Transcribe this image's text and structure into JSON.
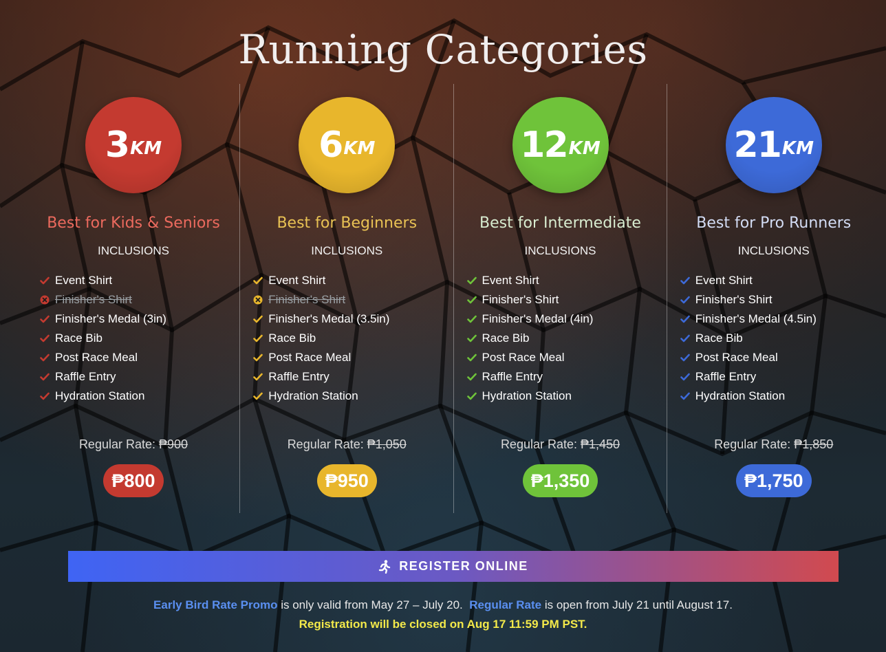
{
  "title": "Running Categories",
  "inclusions_label": "INCLUSIONS",
  "regular_rate_label": "Regular Rate: ",
  "categories": [
    {
      "distance": "3",
      "unit": "KM",
      "headline": "Best for Kids & Seniors",
      "color": "#c43a30",
      "headline_color": "#ec6a5e",
      "items": [
        {
          "label": "Event Shirt",
          "included": true
        },
        {
          "label": "Finisher's Shirt",
          "included": false
        },
        {
          "label": "Finisher's Medal (3in)",
          "included": true
        },
        {
          "label": "Race Bib",
          "included": true
        },
        {
          "label": "Post Race Meal",
          "included": true
        },
        {
          "label": "Raffle Entry",
          "included": true
        },
        {
          "label": "Hydration Station",
          "included": true
        }
      ],
      "regular_price": "₱900",
      "promo_price": "₱800"
    },
    {
      "distance": "6",
      "unit": "KM",
      "headline": "Best for Beginners",
      "color": "#e8b62c",
      "headline_color": "#e9c254",
      "items": [
        {
          "label": "Event Shirt",
          "included": true
        },
        {
          "label": "Finisher's Shirt",
          "included": false
        },
        {
          "label": "Finisher's Medal (3.5in)",
          "included": true
        },
        {
          "label": "Race Bib",
          "included": true
        },
        {
          "label": "Post Race Meal",
          "included": true
        },
        {
          "label": "Raffle Entry",
          "included": true
        },
        {
          "label": "Hydration Station",
          "included": true
        }
      ],
      "regular_price": "₱1,050",
      "promo_price": "₱950"
    },
    {
      "distance": "12",
      "unit": "KM",
      "headline": "Best for Intermediate",
      "color": "#6fc33a",
      "headline_color": "#d8ecd0",
      "items": [
        {
          "label": "Event Shirt",
          "included": true
        },
        {
          "label": "Finisher's Shirt",
          "included": true
        },
        {
          "label": "Finisher's Medal (4in)",
          "included": true
        },
        {
          "label": "Race Bib",
          "included": true
        },
        {
          "label": "Post Race Meal",
          "included": true
        },
        {
          "label": "Raffle Entry",
          "included": true
        },
        {
          "label": "Hydration Station",
          "included": true
        }
      ],
      "regular_price": "₱1,450",
      "promo_price": "₱1,350"
    },
    {
      "distance": "21",
      "unit": "KM",
      "headline": "Best for Pro Runners",
      "color": "#3d6ad8",
      "headline_color": "#d3dcf4",
      "items": [
        {
          "label": "Event Shirt",
          "included": true
        },
        {
          "label": "Finisher's Shirt",
          "included": true
        },
        {
          "label": "Finisher's Medal (4.5in)",
          "included": true
        },
        {
          "label": "Race Bib",
          "included": true
        },
        {
          "label": "Post Race Meal",
          "included": true
        },
        {
          "label": "Raffle Entry",
          "included": true
        },
        {
          "label": "Hydration Station",
          "included": true
        }
      ],
      "regular_price": "₱1,850",
      "promo_price": "₱1,750"
    }
  ],
  "register": {
    "label": "REGISTER ONLINE",
    "icon": "running-person-icon"
  },
  "notes": {
    "early_bird": "Early Bird Rate Promo",
    "early_bird_rest": " is only valid from May 27 – July 20.  ",
    "regular": "Regular Rate",
    "regular_rest": " is open from July 21 until August 17.",
    "deadline": "Registration will be closed on Aug 17 11:59 PM PST."
  }
}
